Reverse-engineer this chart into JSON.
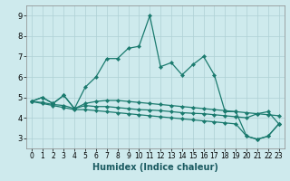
{
  "xlabel": "Humidex (Indice chaleur)",
  "bg_color": "#ceeaed",
  "grid_color": "#aed0d4",
  "line_color": "#1a7a6e",
  "marker": "D",
  "markersize": 2.2,
  "linewidth": 0.9,
  "xlim": [
    -0.5,
    23.5
  ],
  "ylim": [
    2.5,
    9.5
  ],
  "yticks": [
    3,
    4,
    5,
    6,
    7,
    8,
    9
  ],
  "xticks": [
    0,
    1,
    2,
    3,
    4,
    5,
    6,
    7,
    8,
    9,
    10,
    11,
    12,
    13,
    14,
    15,
    16,
    17,
    18,
    19,
    20,
    21,
    22,
    23
  ],
  "series": [
    {
      "x": [
        0,
        1,
        2,
        3,
        4,
        5,
        6,
        7,
        8,
        9,
        10,
        11,
        12,
        13,
        14,
        15,
        16,
        17,
        18,
        19,
        20,
        21,
        22,
        23
      ],
      "y": [
        4.8,
        5.0,
        4.7,
        5.1,
        4.45,
        5.5,
        6.0,
        6.9,
        6.9,
        7.4,
        7.5,
        9.0,
        6.5,
        6.7,
        6.1,
        6.6,
        7.0,
        6.1,
        4.3,
        4.3,
        3.1,
        2.95,
        3.1,
        3.7
      ]
    },
    {
      "x": [
        0,
        1,
        2,
        3,
        4,
        5,
        6,
        7,
        8,
        9,
        10,
        11,
        12,
        13,
        14,
        15,
        16,
        17,
        18,
        19,
        20,
        21,
        22,
        23
      ],
      "y": [
        4.8,
        5.0,
        4.7,
        5.1,
        4.45,
        4.7,
        4.8,
        4.85,
        4.85,
        4.8,
        4.75,
        4.7,
        4.65,
        4.6,
        4.55,
        4.5,
        4.45,
        4.4,
        4.35,
        4.3,
        4.25,
        4.2,
        4.15,
        4.1
      ]
    },
    {
      "x": [
        0,
        1,
        2,
        3,
        4,
        5,
        6,
        7,
        8,
        9,
        10,
        11,
        12,
        13,
        14,
        15,
        16,
        17,
        18,
        19,
        20,
        21,
        22,
        23
      ],
      "y": [
        4.8,
        4.75,
        4.65,
        4.6,
        4.45,
        4.6,
        4.55,
        4.55,
        4.5,
        4.45,
        4.4,
        4.38,
        4.35,
        4.3,
        4.25,
        4.22,
        4.2,
        4.15,
        4.1,
        4.05,
        4.0,
        4.2,
        4.3,
        3.7
      ]
    },
    {
      "x": [
        0,
        1,
        2,
        3,
        4,
        5,
        6,
        7,
        8,
        9,
        10,
        11,
        12,
        13,
        14,
        15,
        16,
        17,
        18,
        19,
        20,
        21,
        22,
        23
      ],
      "y": [
        4.8,
        4.7,
        4.6,
        4.5,
        4.4,
        4.4,
        4.35,
        4.3,
        4.25,
        4.2,
        4.15,
        4.1,
        4.05,
        4.0,
        3.95,
        3.9,
        3.85,
        3.8,
        3.75,
        3.7,
        3.1,
        2.95,
        3.1,
        3.7
      ]
    }
  ]
}
